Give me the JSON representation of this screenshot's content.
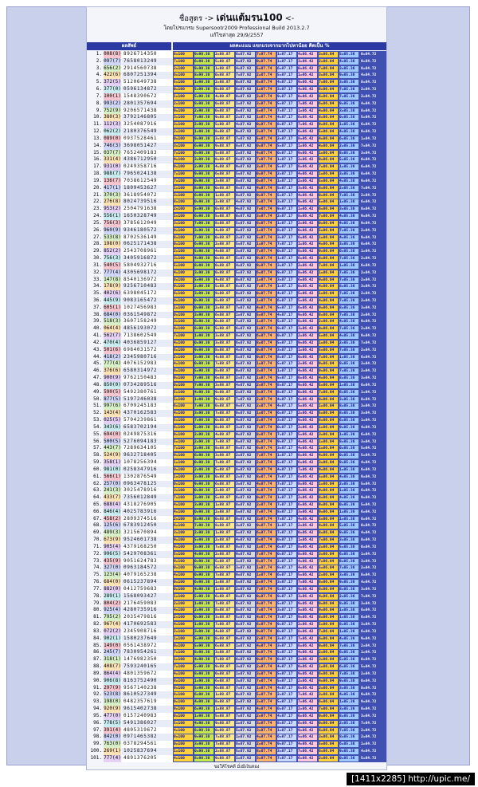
{
  "header": {
    "title_prefix": "ชื่อสูตร ->",
    "title_bold": "เด่นแต้มรน100",
    "title_suffix": "<-",
    "subtitle": "โดยโปรแกรม Supersootr2009 Professional Build 2013.2.7",
    "updated": "แก้ไขล่าสุด 29/9/2557"
  },
  "columns": {
    "left": "ผลสัพธ์",
    "right": "ผลคะแนน แขกแรงจากมากไปหาน้อย คิดเป็น %"
  },
  "footer": "ขอให้โชคดี มั่งมีเงินทอง",
  "watermark": "[1411x2285] http://upic.me/",
  "colors": {
    "frame": "#c9d0ec",
    "result_band": "#4050b2",
    "key_palette": [
      "#f5c6cf",
      "#cfd6f7",
      "#d7f0c8",
      "#fbe3b8",
      "#e4d1f4",
      "#c9ecf0"
    ]
  },
  "rows": [
    {
      "n": "1.",
      "k": "008",
      "d": "8",
      "digits": "8926714350",
      "a": "8",
      "b": "0",
      "c": "6",
      "d2": "3"
    },
    {
      "n": "2.",
      "k": "097",
      "d": "7",
      "digits": "7658013249",
      "a": "7",
      "b": "7",
      "c": "5",
      "d2": "1"
    },
    {
      "n": "3.",
      "k": "656",
      "d": "2",
      "digits": "2914560738",
      "a": "6",
      "b": "2",
      "c": "8",
      "d2": "4"
    },
    {
      "n": "4.",
      "k": "422",
      "d": "6",
      "digits": "6807251394",
      "a": "6",
      "b": "5",
      "c": "0",
      "d2": "3"
    },
    {
      "n": "5.",
      "k": "372",
      "d": "5",
      "digits": "5120649738",
      "a": "5",
      "b": "3",
      "c": "7",
      "d2": "1"
    },
    {
      "n": "6.",
      "k": "377",
      "d": "0",
      "digits": "0596134872",
      "a": "0",
      "b": "1",
      "c": "2",
      "d2": "9"
    },
    {
      "n": "7.",
      "k": "100",
      "d": "1",
      "digits": "1548390672",
      "a": "1",
      "b": "4",
      "c": "6",
      "d2": "8"
    },
    {
      "n": "8.",
      "k": "993",
      "d": "2",
      "digits": "2801357694",
      "a": "2",
      "b": "5",
      "c": "3",
      "d2": "0"
    },
    {
      "n": "9.",
      "k": "752",
      "d": "9",
      "digits": "9206571438",
      "a": "9",
      "b": "7",
      "c": "4",
      "d2": "8"
    },
    {
      "n": "10.",
      "k": "380",
      "d": "3",
      "digits": "3792146805",
      "a": "3",
      "b": "6",
      "c": "1",
      "d2": "4"
    },
    {
      "n": "11.",
      "k": "112",
      "d": "3",
      "digits": "3254087916",
      "a": "3",
      "b": "8",
      "c": "7",
      "d2": "6"
    },
    {
      "n": "12.",
      "k": "062",
      "d": "2",
      "digits": "2180376549",
      "a": "2",
      "b": "9",
      "c": "7",
      "d2": "1"
    },
    {
      "n": "13.",
      "k": "089",
      "d": "0",
      "digits": "0937528461",
      "a": "0",
      "b": "5",
      "c": "6",
      "d2": "8"
    },
    {
      "n": "14.",
      "k": "746",
      "d": "3",
      "digits": "3698051427",
      "a": "3",
      "b": "8",
      "c": "4",
      "d2": "7"
    },
    {
      "n": "15.",
      "k": "037",
      "d": "7",
      "digits": "7652409183",
      "a": "7",
      "b": "2",
      "c": "8",
      "d2": "3"
    },
    {
      "n": "16.",
      "k": "331",
      "d": "4",
      "digits": "4386712950",
      "a": "4",
      "b": "7",
      "c": "9",
      "d2": "0"
    },
    {
      "n": "17.",
      "k": "931",
      "d": "0",
      "digits": "0249358716",
      "a": "0",
      "b": "8",
      "c": "1",
      "d2": "6"
    },
    {
      "n": "18.",
      "k": "988",
      "d": "7",
      "digits": "7965024138",
      "a": "7",
      "b": "4",
      "c": "3",
      "d2": "8"
    },
    {
      "n": "19.",
      "k": "136",
      "d": "7",
      "digits": "7038612549",
      "a": "7",
      "b": "6",
      "c": "5",
      "d2": "9"
    },
    {
      "n": "20.",
      "k": "417",
      "d": "1",
      "digits": "1809453627",
      "a": "1",
      "b": "5",
      "c": "6",
      "d2": "7"
    },
    {
      "n": "21.",
      "k": "370",
      "d": "3",
      "digits": "3618954072",
      "a": "3",
      "b": "9",
      "c": "0",
      "d2": "2"
    },
    {
      "n": "22.",
      "k": "276",
      "d": "8",
      "digits": "8024739516",
      "a": "8",
      "b": "3",
      "c": "5",
      "d2": "6"
    },
    {
      "n": "23.",
      "k": "953",
      "d": "2",
      "digits": "2504791638",
      "a": "2",
      "b": "9",
      "c": "6",
      "d2": "8"
    },
    {
      "n": "24.",
      "k": "556",
      "d": "1",
      "digits": "1650328749",
      "a": "1",
      "b": "2",
      "c": "7",
      "d2": "9"
    },
    {
      "n": "25.",
      "k": "756",
      "d": "3",
      "digits": "3785612049",
      "a": "3",
      "b": "6",
      "c": "0",
      "d2": "9"
    },
    {
      "n": "26.",
      "k": "960",
      "d": "9",
      "digits": "9346180572",
      "a": "9",
      "b": "1",
      "c": "5",
      "d2": "2"
    },
    {
      "n": "27.",
      "k": "533",
      "d": "8",
      "digits": "8702536149",
      "a": "8",
      "b": "3",
      "c": "1",
      "d2": "9"
    },
    {
      "n": "28.",
      "k": "198",
      "d": "0",
      "digits": "0625171438",
      "a": "0",
      "b": "7",
      "c": "4",
      "d2": "8"
    },
    {
      "n": "29.",
      "k": "852",
      "d": "2",
      "digits": "2543708961",
      "a": "2",
      "b": "0",
      "c": "9",
      "d2": "1"
    },
    {
      "n": "30.",
      "k": "756",
      "d": "3",
      "digits": "3405916872",
      "a": "3",
      "b": "1",
      "c": "8",
      "d2": "2"
    },
    {
      "n": "31.",
      "k": "540",
      "d": "5",
      "digits": "5804932716",
      "a": "5",
      "b": "3",
      "c": "7",
      "d2": "6"
    },
    {
      "n": "32.",
      "k": "777",
      "d": "4",
      "digits": "4305698172",
      "a": "4",
      "b": "9",
      "c": "1",
      "d2": "2"
    },
    {
      "n": "33.",
      "k": "147",
      "d": "8",
      "digits": "8540136972",
      "a": "8",
      "b": "1",
      "c": "9",
      "d2": "2"
    },
    {
      "n": "34.",
      "k": "178",
      "d": "9",
      "digits": "9256710483",
      "a": "9",
      "b": "7",
      "c": "4",
      "d2": "3"
    },
    {
      "n": "35.",
      "k": "402",
      "d": "6",
      "digits": "6398045172",
      "a": "6",
      "b": "4",
      "c": "1",
      "d2": "2"
    },
    {
      "n": "36.",
      "k": "445",
      "d": "9",
      "digits": "9083165472",
      "a": "9",
      "b": "6",
      "c": "4",
      "d2": "2"
    },
    {
      "n": "37.",
      "k": "605",
      "d": "1",
      "digits": "1027456983",
      "a": "1",
      "b": "5",
      "c": "9",
      "d2": "3"
    },
    {
      "n": "38.",
      "k": "684",
      "d": "0",
      "digits": "0361549872",
      "a": "0",
      "b": "5",
      "c": "8",
      "d2": "2"
    },
    {
      "n": "39.",
      "k": "518",
      "d": "3",
      "digits": "3607158249",
      "a": "3",
      "b": "1",
      "c": "2",
      "d2": "9"
    },
    {
      "n": "40.",
      "k": "064",
      "d": "4",
      "digits": "4856193072",
      "a": "4",
      "b": "9",
      "c": "0",
      "d2": "2"
    },
    {
      "n": "41.",
      "k": "562",
      "d": "7",
      "digits": "7138602549",
      "a": "7",
      "b": "0",
      "c": "5",
      "d2": "9"
    },
    {
      "n": "42.",
      "k": "470",
      "d": "4",
      "digits": "4036859127",
      "a": "4",
      "b": "5",
      "c": "1",
      "d2": "7"
    },
    {
      "n": "43.",
      "k": "501",
      "d": "6",
      "digits": "6984031572",
      "a": "6",
      "b": "0",
      "c": "5",
      "d2": "2"
    },
    {
      "n": "44.",
      "k": "418",
      "d": "2",
      "digits": "2345980716",
      "a": "2",
      "b": "8",
      "c": "7",
      "d2": "6"
    },
    {
      "n": "45.",
      "k": "777",
      "d": "4",
      "digits": "4076152983",
      "a": "4",
      "b": "5",
      "c": "9",
      "d2": "3"
    },
    {
      "n": "46.",
      "k": "376",
      "d": "6",
      "digits": "6580314972",
      "a": "6",
      "b": "3",
      "c": "9",
      "d2": "2"
    },
    {
      "n": "47.",
      "k": "900",
      "d": "9",
      "digits": "9762150483",
      "a": "9",
      "b": "1",
      "c": "4",
      "d2": "3"
    },
    {
      "n": "48.",
      "k": "850",
      "d": "0",
      "digits": "0734289516",
      "a": "0",
      "b": "2",
      "c": "5",
      "d2": "6"
    },
    {
      "n": "49.",
      "k": "590",
      "d": "5",
      "digits": "5492380761",
      "a": "5",
      "b": "3",
      "c": "7",
      "d2": "1"
    },
    {
      "n": "50.",
      "k": "877",
      "d": "5",
      "digits": "5197246038",
      "a": "5",
      "b": "4",
      "c": "0",
      "d2": "8"
    },
    {
      "n": "51.",
      "k": "997",
      "d": "6",
      "digits": "6709245183",
      "a": "6",
      "b": "2",
      "c": "1",
      "d2": "3"
    },
    {
      "n": "52.",
      "k": "143",
      "d": "4",
      "digits": "4370162583",
      "a": "4",
      "b": "6",
      "c": "5",
      "d2": "3"
    },
    {
      "n": "53.",
      "k": "025",
      "d": "5",
      "digits": "5704239861",
      "a": "5",
      "b": "3",
      "c": "8",
      "d2": "1"
    },
    {
      "n": "54.",
      "k": "343",
      "d": "6",
      "digits": "6583702194",
      "a": "6",
      "b": "0",
      "c": "1",
      "d2": "4"
    },
    {
      "n": "55.",
      "k": "694",
      "d": "0",
      "digits": "0249875316",
      "a": "0",
      "b": "7",
      "c": "3",
      "d2": "6"
    },
    {
      "n": "56.",
      "k": "500",
      "d": "5",
      "digits": "5276094183",
      "a": "5",
      "b": "9",
      "c": "1",
      "d2": "3"
    },
    {
      "n": "57.",
      "k": "443",
      "d": "7",
      "digits": "7289634105",
      "a": "7",
      "b": "6",
      "c": "1",
      "d2": "5"
    },
    {
      "n": "58.",
      "k": "524",
      "d": "9",
      "digits": "9632718405",
      "a": "9",
      "b": "7",
      "c": "4",
      "d2": "5"
    },
    {
      "n": "59.",
      "k": "358",
      "d": "1",
      "digits": "1078256394",
      "a": "1",
      "b": "2",
      "c": "3",
      "d2": "4"
    },
    {
      "n": "60.",
      "k": "981",
      "d": "0",
      "digits": "0258347916",
      "a": "0",
      "b": "3",
      "c": "9",
      "d2": "6"
    },
    {
      "n": "61.",
      "k": "566",
      "d": "1",
      "digits": "1302876549",
      "a": "1",
      "b": "8",
      "c": "5",
      "d2": "9"
    },
    {
      "n": "62.",
      "k": "257",
      "d": "0",
      "digits": "0963478125",
      "a": "0",
      "b": "4",
      "c": "1",
      "d2": "5"
    },
    {
      "n": "63.",
      "k": "241",
      "d": "3",
      "digits": "3025478916",
      "a": "3",
      "b": "4",
      "c": "9",
      "d2": "6"
    },
    {
      "n": "64.",
      "k": "433",
      "d": "7",
      "digits": "7356012849",
      "a": "7",
      "b": "0",
      "c": "8",
      "d2": "9"
    },
    {
      "n": "65.",
      "k": "688",
      "d": "4",
      "digits": "4318276905",
      "a": "4",
      "b": "2",
      "c": "9",
      "d2": "5"
    },
    {
      "n": "66.",
      "k": "846",
      "d": "4",
      "digits": "4025783916",
      "a": "4",
      "b": "7",
      "c": "9",
      "d2": "6"
    },
    {
      "n": "67.",
      "k": "458",
      "d": "2",
      "digits": "2809374516",
      "a": "2",
      "b": "3",
      "c": "5",
      "d2": "6"
    },
    {
      "n": "68.",
      "k": "125",
      "d": "6",
      "digits": "6783912450",
      "a": "6",
      "b": "1",
      "c": "4",
      "d2": "0"
    },
    {
      "n": "69.",
      "k": "489",
      "d": "3",
      "digits": "3215670894",
      "a": "3",
      "b": "6",
      "c": "8",
      "d2": "4"
    },
    {
      "n": "70.",
      "k": "673",
      "d": "9",
      "digits": "9524601738",
      "a": "9",
      "b": "0",
      "c": "7",
      "d2": "8"
    },
    {
      "n": "71.",
      "k": "905",
      "d": "4",
      "digits": "4379168250",
      "a": "4",
      "b": "1",
      "c": "2",
      "d2": "0"
    },
    {
      "n": "72.",
      "k": "996",
      "d": "5",
      "digits": "5429708361",
      "a": "5",
      "b": "7",
      "c": "3",
      "d2": "1"
    },
    {
      "n": "73.",
      "k": "435",
      "d": "9",
      "digits": "9051624783",
      "a": "9",
      "b": "2",
      "c": "7",
      "d2": "3"
    },
    {
      "n": "74.",
      "k": "327",
      "d": "0",
      "digits": "0963184572",
      "a": "0",
      "b": "1",
      "c": "5",
      "d2": "2"
    },
    {
      "n": "75.",
      "k": "123",
      "d": "4",
      "digits": "4079165238",
      "a": "4",
      "b": "1",
      "c": "2",
      "d2": "8"
    },
    {
      "n": "76.",
      "k": "684",
      "d": "0",
      "digits": "0615237894",
      "a": "0",
      "b": "3",
      "c": "8",
      "d2": "4"
    },
    {
      "n": "77.",
      "k": "882",
      "d": "0",
      "digits": "0412759683",
      "a": "0",
      "b": "7",
      "c": "6",
      "d2": "3"
    },
    {
      "n": "78.",
      "k": "289",
      "d": "1",
      "digits": "1568093427",
      "a": "1",
      "b": "0",
      "c": "4",
      "d2": "7"
    },
    {
      "n": "79.",
      "k": "804",
      "d": "2",
      "digits": "2176459083",
      "a": "2",
      "b": "5",
      "c": "0",
      "d2": "3"
    },
    {
      "n": "80.",
      "k": "925",
      "d": "4",
      "digits": "4280735916",
      "a": "4",
      "b": "3",
      "c": "9",
      "d2": "6"
    },
    {
      "n": "81.",
      "k": "795",
      "d": "2",
      "digits": "2035479816",
      "a": "2",
      "b": "7",
      "c": "8",
      "d2": "6"
    },
    {
      "n": "82.",
      "k": "967",
      "d": "4",
      "digits": "4170692583",
      "a": "4",
      "b": "9",
      "c": "5",
      "d2": "3"
    },
    {
      "n": "83.",
      "k": "072",
      "d": "2",
      "digits": "2345908716",
      "a": "2",
      "b": "0",
      "c": "7",
      "d2": "6"
    },
    {
      "n": "84.",
      "k": "902",
      "d": "1",
      "digits": "1580237649",
      "a": "1",
      "b": "3",
      "c": "6",
      "d2": "9"
    },
    {
      "n": "85.",
      "k": "149",
      "d": "0",
      "digits": "0561438972",
      "a": "0",
      "b": "4",
      "c": "9",
      "d2": "2"
    },
    {
      "n": "86.",
      "k": "245",
      "d": "7",
      "digits": "7830954261",
      "a": "7",
      "b": "5",
      "c": "2",
      "d2": "1"
    },
    {
      "n": "87.",
      "k": "318",
      "d": "1",
      "digits": "1476982350",
      "a": "1",
      "b": "8",
      "c": "3",
      "d2": "0"
    },
    {
      "n": "88.",
      "k": "408",
      "d": "7",
      "digits": "7593240165",
      "a": "7",
      "b": "2",
      "c": "1",
      "d2": "5"
    },
    {
      "n": "89.",
      "k": "864",
      "d": "4",
      "digits": "4801359672",
      "a": "4",
      "b": "5",
      "c": "6",
      "d2": "2"
    },
    {
      "n": "90.",
      "k": "906",
      "d": "8",
      "digits": "8163752490",
      "a": "8",
      "b": "5",
      "c": "4",
      "d2": "0"
    },
    {
      "n": "91.",
      "k": "297",
      "d": "9",
      "digits": "9567140238",
      "a": "9",
      "b": "1",
      "c": "2",
      "d2": "8"
    },
    {
      "n": "92.",
      "k": "523",
      "d": "8",
      "digits": "8610527349",
      "a": "8",
      "b": "0",
      "c": "3",
      "d2": "9"
    },
    {
      "n": "93.",
      "k": "198",
      "d": "0",
      "digits": "0482357619",
      "a": "0",
      "b": "3",
      "c": "6",
      "d2": "9"
    },
    {
      "n": "94.",
      "k": "920",
      "d": "9",
      "digits": "9615402738",
      "a": "9",
      "b": "4",
      "c": "7",
      "d2": "8"
    },
    {
      "n": "95.",
      "k": "477",
      "d": "0",
      "digits": "0157240983",
      "a": "0",
      "b": "4",
      "c": "9",
      "d2": "3"
    },
    {
      "n": "96.",
      "k": "778",
      "d": "5",
      "digits": "5491386027",
      "a": "5",
      "b": "8",
      "c": "0",
      "d2": "7"
    },
    {
      "n": "97.",
      "k": "391",
      "d": "4",
      "digits": "4805319672",
      "a": "4",
      "b": "3",
      "c": "6",
      "d2": "2"
    },
    {
      "n": "98.",
      "k": "842",
      "d": "0",
      "digits": "0971465382",
      "a": "0",
      "b": "6",
      "c": "3",
      "d2": "2"
    },
    {
      "n": "99.",
      "k": "763",
      "d": "0",
      "digits": "0378294561",
      "a": "0",
      "b": "9",
      "c": "5",
      "d2": "1"
    },
    {
      "n": "100.",
      "k": "269",
      "d": "1",
      "digits": "1025837694",
      "a": "1",
      "b": "3",
      "c": "6",
      "d2": "4"
    },
    {
      "n": "101.",
      "k": "777",
      "d": "4",
      "digits": "4891376205",
      "a": "4",
      "b": "7",
      "c": "2",
      "d2": "5"
    }
  ],
  "score_pattern": [
    "=100",
    "=90.38",
    "=88.87",
    "=87.92",
    "=87.74",
    "=87.17",
    "=86.42",
    "=86.04",
    "=85.36",
    "=84.72"
  ],
  "score_colors": [
    "#ffd23a",
    "#c6e84a",
    "#ffe98a",
    "#d8d8d8",
    "#ffb46a",
    "#c8d8ff",
    "#ffc8d8",
    "#ffd23a",
    "#9fc8ff",
    "#ffffff"
  ]
}
